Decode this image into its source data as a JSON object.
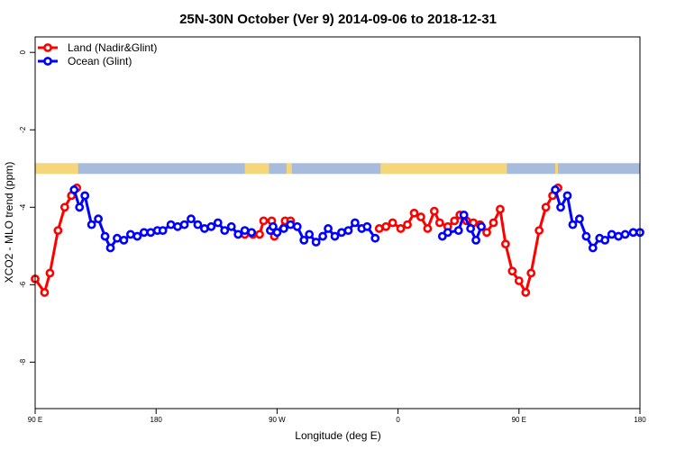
{
  "chart_data": {
    "type": "line",
    "title": "25N-30N October (Ver 9)   2014-09-06 to 2018-12-31",
    "xlabel": "Longitude (deg E)",
    "ylabel": "XCO2 - MLO trend (ppm)",
    "xlim": [
      90,
      540
    ],
    "ylim": [
      -9.2,
      0.4
    ],
    "y_reversed": true,
    "x_ticks": [
      {
        "value": 90,
        "label": "90 E"
      },
      {
        "value": 180,
        "label": "180"
      },
      {
        "value": 270,
        "label": "90 W"
      },
      {
        "value": 360,
        "label": "0"
      },
      {
        "value": 450,
        "label": "90 E"
      },
      {
        "value": 540,
        "label": "180"
      }
    ],
    "y_ticks": [
      {
        "value": 0,
        "label": "0"
      },
      {
        "value": -2,
        "label": "-2"
      },
      {
        "value": -4,
        "label": "-4"
      },
      {
        "value": -6,
        "label": "-6"
      },
      {
        "value": -8,
        "label": "-8"
      }
    ],
    "grid": false,
    "legend_position": "top-left",
    "colors": {
      "land": "#ff0000",
      "ocean": "#0000ff",
      "land_strip": "#f6d67b",
      "ocean_strip": "#a7bcdc"
    },
    "land_strip_y": -3.0,
    "land_strip_segments": [
      {
        "x1": 90,
        "x2": 122,
        "type": "land"
      },
      {
        "x1": 122,
        "x2": 246,
        "type": "ocean"
      },
      {
        "x1": 246,
        "x2": 264,
        "type": "land"
      },
      {
        "x1": 264,
        "x2": 277,
        "type": "ocean"
      },
      {
        "x1": 277,
        "x2": 281,
        "type": "land"
      },
      {
        "x1": 281,
        "x2": 347,
        "type": "ocean"
      },
      {
        "x1": 347,
        "x2": 441,
        "type": "land"
      },
      {
        "x1": 441,
        "x2": 477,
        "type": "ocean"
      },
      {
        "x1": 477,
        "x2": 479,
        "type": "land"
      },
      {
        "x1": 479,
        "x2": 540,
        "type": "ocean"
      }
    ],
    "series": [
      {
        "name": "Land (Nadir&Glint)",
        "color": "#ff0000",
        "segments": [
          [
            [
              90,
              -5.85
            ],
            [
              97,
              -6.2
            ],
            [
              101,
              -5.7
            ],
            [
              107,
              -4.6
            ],
            [
              112,
              -4.0
            ],
            [
              117,
              -3.7
            ],
            [
              121,
              -3.5
            ]
          ],
          [
            [
              246,
              -4.7
            ],
            [
              252,
              -4.7
            ],
            [
              257,
              -4.7
            ],
            [
              260,
              -4.35
            ],
            [
              266,
              -4.35
            ],
            [
              268,
              -4.75
            ],
            [
              276,
              -4.35
            ],
            [
              280,
              -4.35
            ]
          ],
          [
            [
              346,
              -4.55
            ],
            [
              351,
              -4.5
            ],
            [
              356,
              -4.4
            ],
            [
              362,
              -4.55
            ],
            [
              367,
              -4.45
            ],
            [
              372,
              -4.15
            ],
            [
              377,
              -4.25
            ],
            [
              382,
              -4.55
            ],
            [
              387,
              -4.1
            ],
            [
              391,
              -4.4
            ],
            [
              397,
              -4.5
            ],
            [
              402,
              -4.35
            ],
            [
              406,
              -4.2
            ],
            [
              411,
              -4.35
            ],
            [
              416,
              -4.4
            ],
            [
              421,
              -4.45
            ],
            [
              426,
              -4.65
            ],
            [
              431,
              -4.4
            ],
            [
              436,
              -4.05
            ],
            [
              440,
              -4.95
            ],
            [
              445,
              -5.65
            ],
            [
              450,
              -5.9
            ],
            [
              455,
              -6.2
            ],
            [
              459,
              -5.7
            ],
            [
              465,
              -4.6
            ],
            [
              470,
              -4.0
            ],
            [
              475,
              -3.7
            ],
            [
              479,
              -3.5
            ]
          ]
        ]
      },
      {
        "name": "Ocean (Glint)",
        "color": "#0000ff",
        "segments": [
          [
            [
              119,
              -3.55
            ],
            [
              123,
              -4.0
            ],
            [
              127,
              -3.7
            ],
            [
              132,
              -4.45
            ],
            [
              137,
              -4.3
            ],
            [
              142,
              -4.75
            ],
            [
              146,
              -5.05
            ],
            [
              151,
              -4.8
            ],
            [
              156,
              -4.85
            ],
            [
              161,
              -4.7
            ],
            [
              166,
              -4.75
            ],
            [
              171,
              -4.65
            ],
            [
              176,
              -4.65
            ],
            [
              181,
              -4.6
            ],
            [
              185,
              -4.6
            ],
            [
              191,
              -4.45
            ],
            [
              196,
              -4.5
            ],
            [
              201,
              -4.45
            ],
            [
              206,
              -4.3
            ],
            [
              211,
              -4.45
            ],
            [
              216,
              -4.55
            ],
            [
              221,
              -4.5
            ],
            [
              226,
              -4.4
            ],
            [
              231,
              -4.6
            ],
            [
              236,
              -4.5
            ],
            [
              241,
              -4.7
            ],
            [
              246,
              -4.6
            ],
            [
              251,
              -4.65
            ]
          ],
          [
            [
              265,
              -4.6
            ],
            [
              267,
              -4.5
            ],
            [
              270,
              -4.65
            ],
            [
              275,
              -4.55
            ],
            [
              280,
              -4.45
            ],
            [
              285,
              -4.5
            ],
            [
              290,
              -4.85
            ],
            [
              294,
              -4.7
            ],
            [
              299,
              -4.9
            ],
            [
              304,
              -4.75
            ],
            [
              308,
              -4.55
            ],
            [
              313,
              -4.75
            ],
            [
              318,
              -4.65
            ],
            [
              323,
              -4.6
            ],
            [
              328,
              -4.4
            ],
            [
              333,
              -4.55
            ],
            [
              337,
              -4.5
            ],
            [
              343,
              -4.8
            ]
          ],
          [
            [
              393,
              -4.75
            ],
            [
              397,
              -4.65
            ],
            [
              405,
              -4.6
            ],
            [
              409,
              -4.2
            ],
            [
              414,
              -4.55
            ],
            [
              418,
              -4.85
            ],
            [
              422,
              -4.5
            ]
          ],
          [
            [
              477,
              -3.55
            ],
            [
              481,
              -4.0
            ],
            [
              486,
              -3.7
            ],
            [
              490,
              -4.45
            ],
            [
              495,
              -4.3
            ],
            [
              500,
              -4.75
            ],
            [
              505,
              -5.05
            ],
            [
              510,
              -4.8
            ],
            [
              514,
              -4.85
            ],
            [
              519,
              -4.7
            ],
            [
              524,
              -4.75
            ],
            [
              529,
              -4.7
            ],
            [
              535,
              -4.65
            ],
            [
              540,
              -4.65
            ]
          ]
        ]
      }
    ]
  }
}
